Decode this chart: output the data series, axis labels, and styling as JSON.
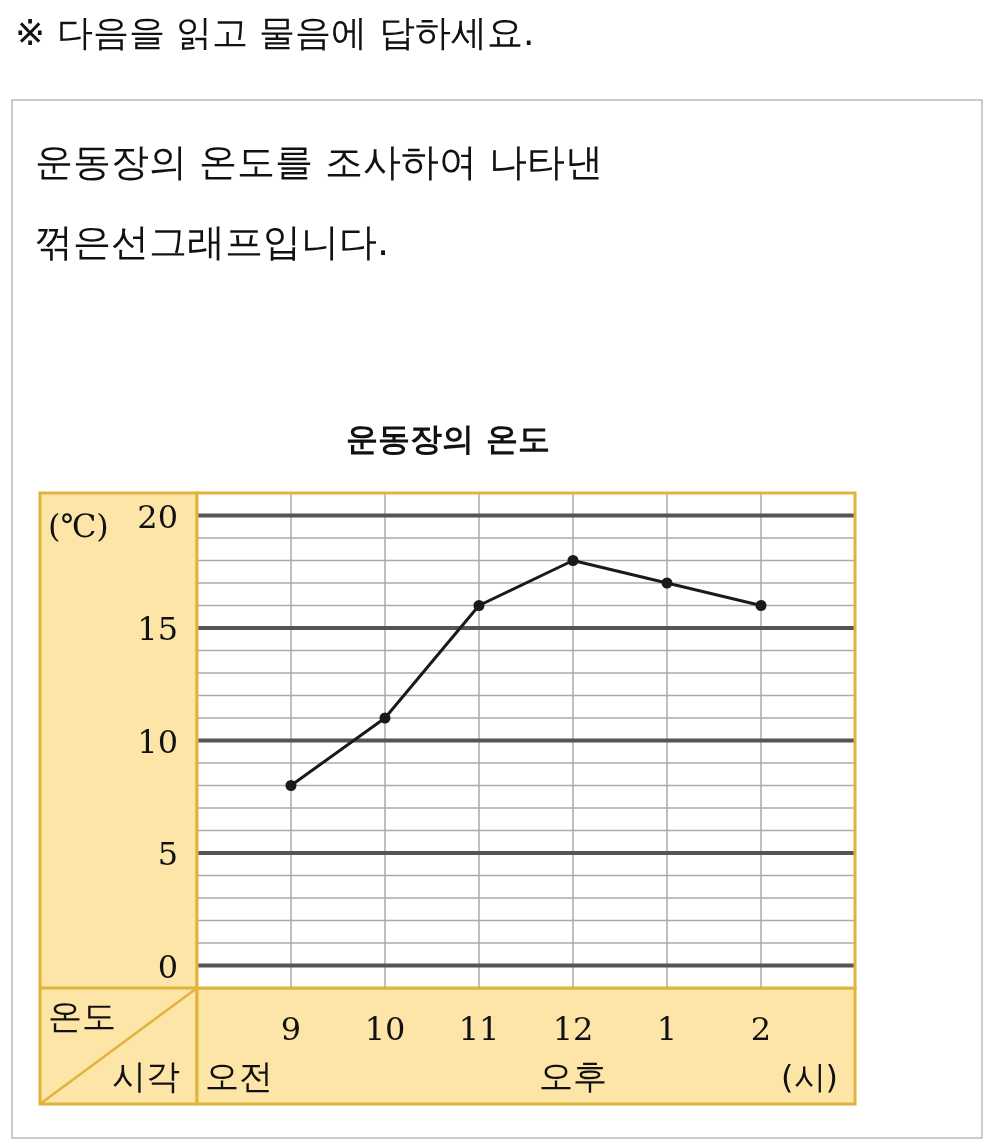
{
  "chart_data": {
    "type": "line",
    "title": "운동장의 온도",
    "xlabel": "시각",
    "ylabel": "온도",
    "categories": [
      "9",
      "10",
      "11",
      "12",
      "1",
      "2"
    ],
    "values": [
      8,
      11,
      16,
      18,
      17,
      16
    ],
    "color": "#1a1a1a",
    "ylim": [
      -1,
      21
    ],
    "yticks": [
      0,
      5,
      10,
      15,
      20
    ],
    "grid": true,
    "marker": "circle",
    "line_style": "solid",
    "annotations": [
      "※ 다음을 읽고 물음에 답하세요.",
      "운동장의 온도를 조사하여 나타낸 꺾은선그래프입니다.",
      "(℃)",
      "(시)",
      "오전",
      "오후"
    ]
  }
}
